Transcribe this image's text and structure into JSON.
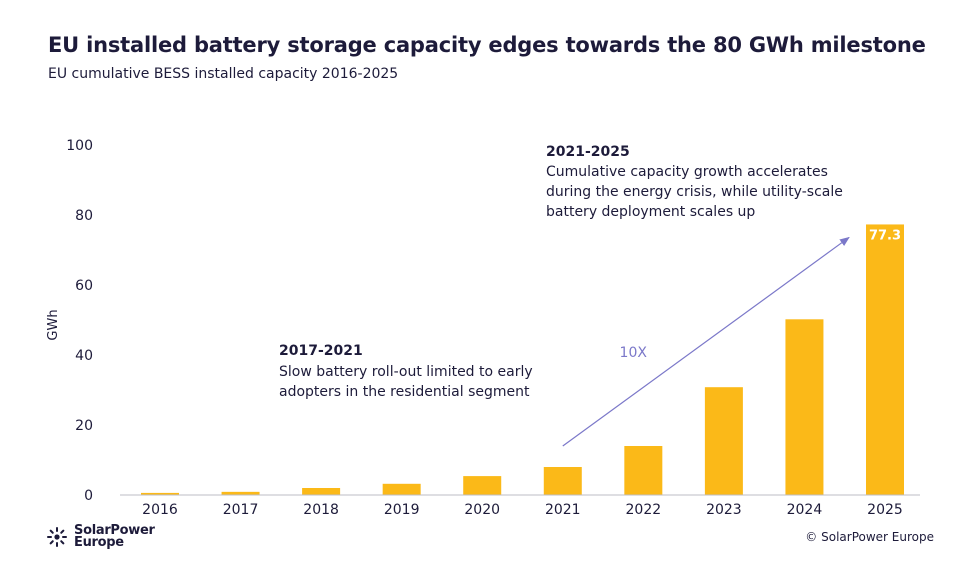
{
  "chart_data": {
    "type": "bar",
    "title": "EU installed battery storage capacity edges towards the 80 GWh milestone",
    "subtitle": "EU cumulative BESS installed capacity 2016-2025",
    "ylabel": "GWh",
    "xlabel": "",
    "ylim": [
      0,
      100
    ],
    "yticks": [
      0,
      20,
      40,
      60,
      80,
      100
    ],
    "categories": [
      "2016",
      "2017",
      "2018",
      "2019",
      "2020",
      "2021",
      "2022",
      "2023",
      "2024",
      "2025"
    ],
    "values": [
      0.6,
      0.9,
      2.0,
      3.2,
      5.4,
      8.0,
      14.0,
      30.8,
      50.2,
      77.3
    ],
    "bar_color": "#fbb918",
    "data_labels": [
      {
        "index": 9,
        "text": "77.3"
      }
    ],
    "annotations": [
      {
        "heading": "2021-2025",
        "lines": [
          "Cumulative capacity growth accelerates",
          "during the energy crisis, while utility-scale",
          "battery deployment scales up"
        ]
      },
      {
        "heading": "2017-2021",
        "lines": [
          "Slow battery roll-out limited to early",
          "adopters in the residential segment"
        ]
      }
    ],
    "growth_arrow": {
      "label": "10X",
      "from_category": "2021",
      "to_category": "2025",
      "color": "#7b78c9"
    }
  },
  "logo": {
    "line1": "SolarPower",
    "line2": "Europe"
  },
  "copyright": "© SolarPower Europe",
  "colors": {
    "text": "#1d1b3a",
    "bar": "#fbb918",
    "arrow": "#7b78c9"
  }
}
